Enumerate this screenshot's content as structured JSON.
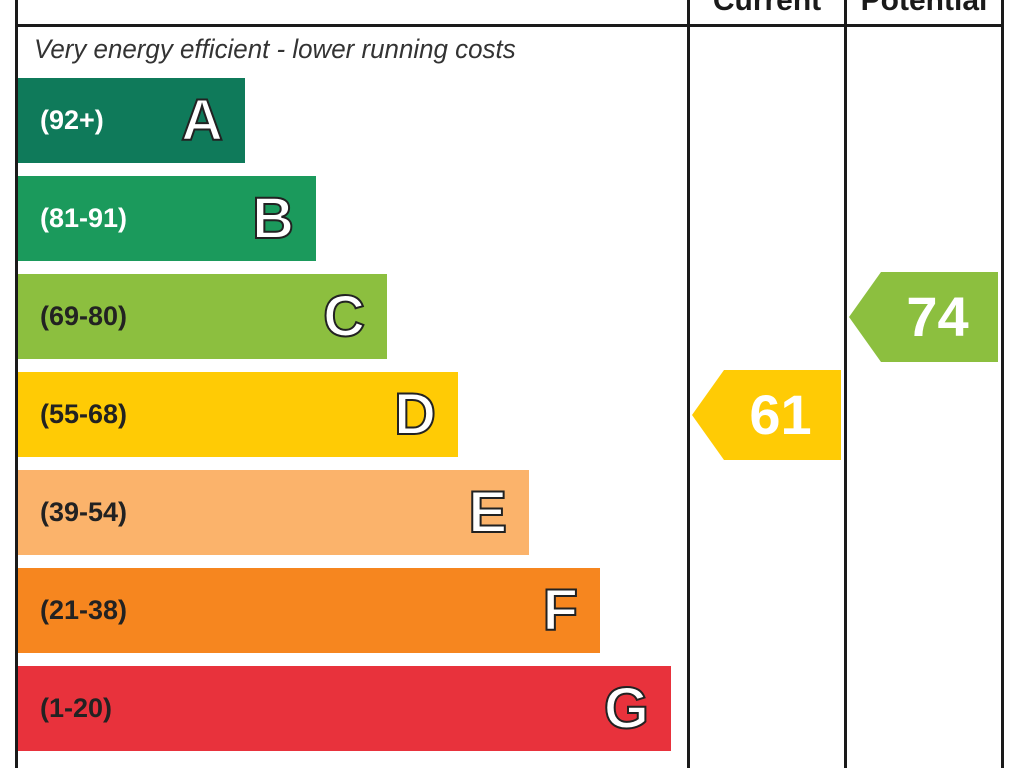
{
  "header": {
    "current_label": "Current",
    "potential_label": "Potential"
  },
  "caption": "Very energy efficient - lower running costs",
  "chart_data": {
    "type": "bar",
    "bands": [
      {
        "letter": "A",
        "range": "(92+)",
        "min": 92,
        "max": 100,
        "color": "#0f7a5a",
        "range_text_color": "#ffffff"
      },
      {
        "letter": "B",
        "range": "(81-91)",
        "min": 81,
        "max": 91,
        "color": "#1b9a5c",
        "range_text_color": "#ffffff"
      },
      {
        "letter": "C",
        "range": "(69-80)",
        "min": 69,
        "max": 80,
        "color": "#8cbf3f",
        "range_text_color": "#222222"
      },
      {
        "letter": "D",
        "range": "(55-68)",
        "min": 55,
        "max": 68,
        "color": "#ffcb05",
        "range_text_color": "#222222"
      },
      {
        "letter": "E",
        "range": "(39-54)",
        "min": 39,
        "max": 54,
        "color": "#fbb36b",
        "range_text_color": "#222222"
      },
      {
        "letter": "F",
        "range": "(21-38)",
        "min": 21,
        "max": 38,
        "color": "#f6861f",
        "range_text_color": "#222222"
      },
      {
        "letter": "G",
        "range": "(1-20)",
        "min": 1,
        "max": 20,
        "color": "#e8323c",
        "range_text_color": "#222222"
      }
    ],
    "current": {
      "value": "61",
      "band": "D",
      "color": "#ffcb05"
    },
    "potential": {
      "value": "74",
      "band": "C",
      "color": "#8cbf3f"
    }
  }
}
